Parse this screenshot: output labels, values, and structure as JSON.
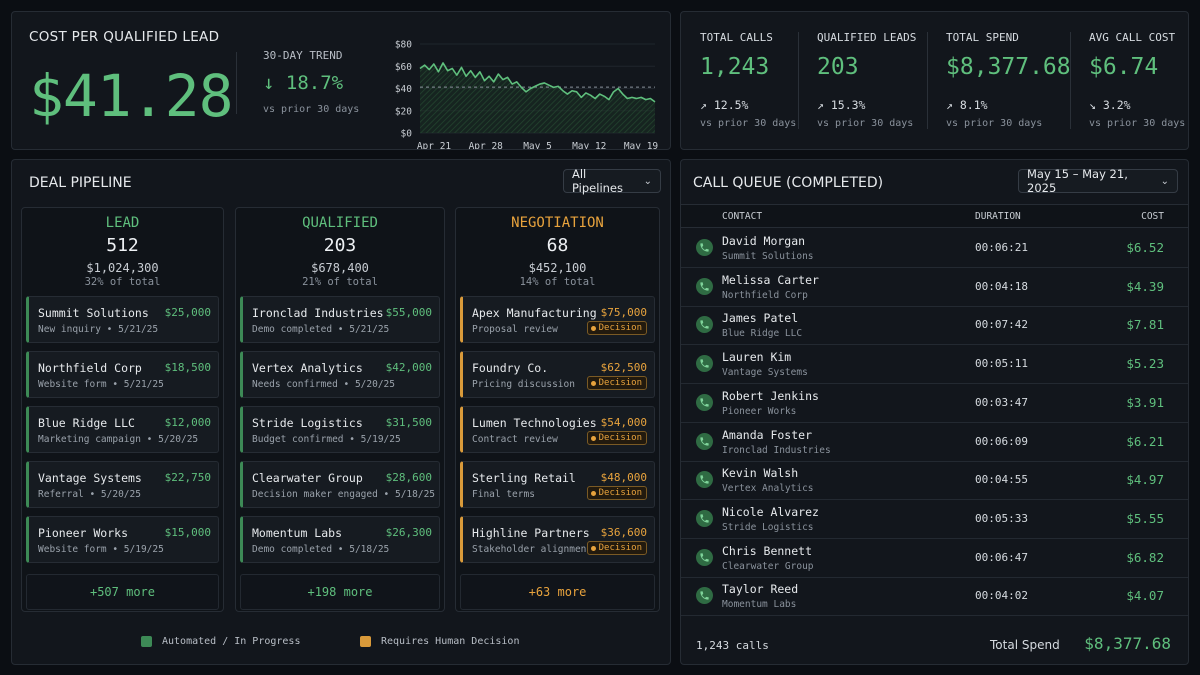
{
  "cpql": {
    "title": "COST PER QUALIFIED LEAD",
    "value": "$41.28",
    "trend_label": "30-DAY TREND",
    "trend_value": "↓ 18.7%",
    "trend_sub": "vs prior 30 days"
  },
  "chart_data": {
    "type": "area",
    "x_labels": [
      "Apr 21",
      "Apr 28",
      "May 5",
      "May 12",
      "May 19"
    ],
    "y_ticks": [
      "$80",
      "$60",
      "$40",
      "$20",
      "$0"
    ],
    "ylim": [
      0,
      80
    ],
    "reference_line": 41.28,
    "values": [
      58,
      61,
      57,
      62,
      55,
      63,
      56,
      58,
      52,
      59,
      51,
      56,
      50,
      55,
      47,
      51,
      46,
      53,
      48,
      50,
      44,
      46,
      41,
      37,
      40,
      42,
      44,
      45,
      43,
      41,
      42,
      38,
      35,
      38,
      37,
      32,
      36,
      34,
      31,
      35,
      33,
      30,
      37,
      40,
      35,
      31,
      32,
      31,
      32,
      30,
      31,
      28
    ],
    "color": "#5fbf7d"
  },
  "kpis": [
    {
      "label": "TOTAL CALLS",
      "value": "1,243",
      "delta": "↗ 12.5%",
      "sub": "vs prior 30 days"
    },
    {
      "label": "QUALIFIED LEADS",
      "value": "203",
      "delta": "↗ 15.3%",
      "sub": "vs prior 30 days"
    },
    {
      "label": "TOTAL SPEND",
      "value": "$8,377.68",
      "delta": "↗ 8.1%",
      "sub": "vs prior 30 days"
    },
    {
      "label": "AVG CALL COST",
      "value": "$6.74",
      "delta": "↘ 3.2%",
      "sub": "vs prior 30 days"
    }
  ],
  "pipeline": {
    "title": "DEAL PIPELINE",
    "filter": "All Pipelines",
    "columns": [
      {
        "name": "LEAD",
        "count": "512",
        "amount": "$1,024,300",
        "pct": "32% of total",
        "more": "+507 more",
        "cards": [
          {
            "name": "Summit Solutions",
            "value": "$25,000",
            "sub": "New inquiry • 5/21/25"
          },
          {
            "name": "Northfield Corp",
            "value": "$18,500",
            "sub": "Website form • 5/21/25"
          },
          {
            "name": "Blue Ridge LLC",
            "value": "$12,000",
            "sub": "Marketing campaign • 5/20/25"
          },
          {
            "name": "Vantage Systems",
            "value": "$22,750",
            "sub": "Referral • 5/20/25"
          },
          {
            "name": "Pioneer Works",
            "value": "$15,000",
            "sub": "Website form • 5/19/25"
          }
        ]
      },
      {
        "name": "QUALIFIED",
        "count": "203",
        "amount": "$678,400",
        "pct": "21% of total",
        "more": "+198 more",
        "cards": [
          {
            "name": "Ironclad Industries",
            "value": "$55,000",
            "sub": "Demo completed • 5/21/25"
          },
          {
            "name": "Vertex Analytics",
            "value": "$42,000",
            "sub": "Needs confirmed • 5/20/25"
          },
          {
            "name": "Stride Logistics",
            "value": "$31,500",
            "sub": "Budget confirmed • 5/19/25"
          },
          {
            "name": "Clearwater Group",
            "value": "$28,600",
            "sub": "Decision maker engaged • 5/18/25"
          },
          {
            "name": "Momentum Labs",
            "value": "$26,300",
            "sub": "Demo completed • 5/18/25"
          }
        ]
      },
      {
        "name": "NEGOTIATION",
        "count": "68",
        "amount": "$452,100",
        "pct": "14% of total",
        "more": "+63 more",
        "cards": [
          {
            "name": "Apex Manufacturing",
            "value": "$75,000",
            "sub": "Proposal review",
            "badge": "Decision"
          },
          {
            "name": "Foundry Co.",
            "value": "$62,500",
            "sub": "Pricing discussion",
            "badge": "Decision"
          },
          {
            "name": "Lumen Technologies",
            "value": "$54,000",
            "sub": "Contract review",
            "badge": "Decision"
          },
          {
            "name": "Sterling Retail",
            "value": "$48,000",
            "sub": "Final terms",
            "badge": "Decision"
          },
          {
            "name": "Highline Partners",
            "value": "$36,600",
            "sub": "Stakeholder alignment",
            "badge": "Decision"
          }
        ]
      }
    ],
    "legend": [
      {
        "label": "Automated / In Progress",
        "color": "#3d8a56"
      },
      {
        "label": "Requires Human Decision",
        "color": "#d99a3a"
      }
    ]
  },
  "queue": {
    "title": "CALL QUEUE (COMPLETED)",
    "date_range": "May 15 – May 21, 2025",
    "headers": {
      "contact": "CONTACT",
      "duration": "DURATION",
      "cost": "COST"
    },
    "rows": [
      {
        "name": "David Morgan",
        "company": "Summit Solutions",
        "duration": "00:06:21",
        "cost": "$6.52"
      },
      {
        "name": "Melissa Carter",
        "company": "Northfield Corp",
        "duration": "00:04:18",
        "cost": "$4.39"
      },
      {
        "name": "James Patel",
        "company": "Blue Ridge LLC",
        "duration": "00:07:42",
        "cost": "$7.81"
      },
      {
        "name": "Lauren Kim",
        "company": "Vantage Systems",
        "duration": "00:05:11",
        "cost": "$5.23"
      },
      {
        "name": "Robert Jenkins",
        "company": "Pioneer Works",
        "duration": "00:03:47",
        "cost": "$3.91"
      },
      {
        "name": "Amanda Foster",
        "company": "Ironclad Industries",
        "duration": "00:06:09",
        "cost": "$6.21"
      },
      {
        "name": "Kevin Walsh",
        "company": "Vertex Analytics",
        "duration": "00:04:55",
        "cost": "$4.97"
      },
      {
        "name": "Nicole Alvarez",
        "company": "Stride Logistics",
        "duration": "00:05:33",
        "cost": "$5.55"
      },
      {
        "name": "Chris Bennett",
        "company": "Clearwater Group",
        "duration": "00:06:47",
        "cost": "$6.82"
      },
      {
        "name": "Taylor Reed",
        "company": "Momentum Labs",
        "duration": "00:04:02",
        "cost": "$4.07"
      }
    ],
    "footer_calls": "1,243 calls",
    "footer_total_label": "Total Spend",
    "footer_total_value": "$8,377.68"
  }
}
